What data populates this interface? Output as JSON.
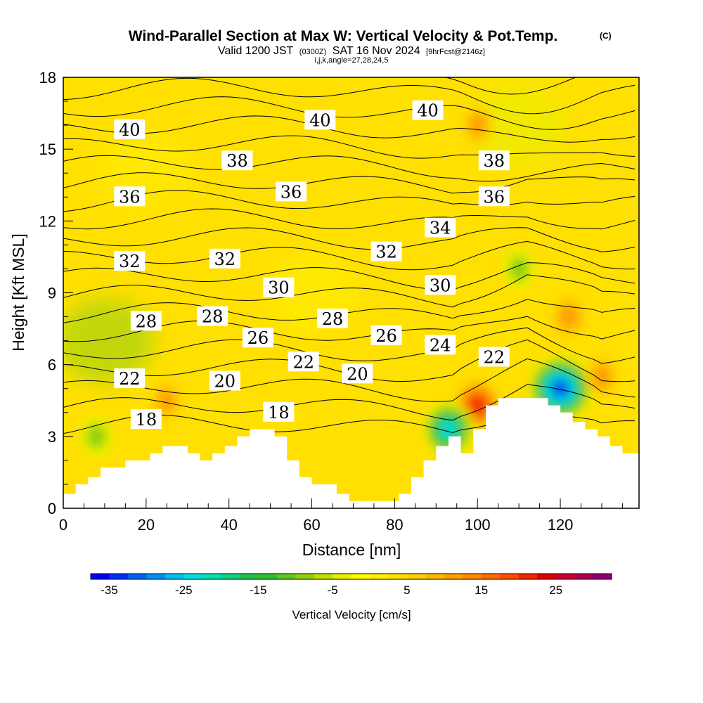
{
  "title": {
    "main": "Wind-Parallel Section at Max W: Vertical Velocity & Pot.Temp.",
    "copyright": "(C)",
    "valid_a": "Valid 1200 JST",
    "valid_b": "(0300Z)",
    "valid_c": "SAT 16 Nov 2024",
    "valid_d": "[9hrFcst@2146z]",
    "indices": "i,j,k,angle=27,28,24,5"
  },
  "chart_data": {
    "type": "heatmap",
    "xlabel": "Distance [nm]",
    "ylabel": "Height [Kft MSL]",
    "xlim": [
      0,
      139
    ],
    "ylim": [
      0,
      18
    ],
    "x_ticks": [
      0,
      20,
      40,
      60,
      80,
      100,
      120
    ],
    "y_ticks": [
      0,
      3,
      6,
      9,
      12,
      15,
      18
    ],
    "colorbar": {
      "label": "Vertical Velocity [cm/s]",
      "tick_labels": [
        "-35",
        "-25",
        "-15",
        "-5",
        "5",
        "15",
        "25"
      ],
      "min": -37.5,
      "max": 32.5,
      "step": 2.5,
      "colors": [
        "#0000f0",
        "#0030f0",
        "#0060f0",
        "#0090f0",
        "#00c0f0",
        "#00e0e0",
        "#00e0b0",
        "#10d080",
        "#20c050",
        "#30c030",
        "#60c820",
        "#90d010",
        "#c0e000",
        "#e8f000",
        "#ffff00",
        "#fff000",
        "#ffe000",
        "#ffd000",
        "#ffb800",
        "#ffa000",
        "#ff8800",
        "#ff6c00",
        "#ff4c00",
        "#f02800",
        "#e00000",
        "#c80030",
        "#b00050",
        "#900070"
      ]
    },
    "vertical_velocity_features": [
      {
        "kind": "updraft",
        "x": 100,
        "y": 4.3,
        "peak": 22
      },
      {
        "kind": "downdraft",
        "x": 93,
        "y": 3.3,
        "peak": -25
      },
      {
        "kind": "downdraft",
        "x": 120,
        "y": 5.0,
        "peak": -35
      },
      {
        "kind": "updraft",
        "x": 122,
        "y": 8.0,
        "peak": 12
      },
      {
        "kind": "updraft",
        "x": 130,
        "y": 5.5,
        "peak": 10
      },
      {
        "kind": "downdraft",
        "x": 8,
        "y": 3.0,
        "peak": -10
      },
      {
        "kind": "updraft",
        "x": 25,
        "y": 4.5,
        "peak": 8
      },
      {
        "kind": "downdraft",
        "x": 110,
        "y": 10.0,
        "peak": -10
      },
      {
        "kind": "updraft",
        "x": 100,
        "y": 16.0,
        "peak": 8
      }
    ],
    "terrain_profile": {
      "x": [
        0,
        3,
        6,
        9,
        12,
        15,
        18,
        21,
        24,
        27,
        30,
        33,
        36,
        39,
        42,
        45,
        48,
        51,
        54,
        57,
        60,
        63,
        66,
        69,
        72,
        75,
        78,
        81,
        84,
        87,
        90,
        93,
        96,
        99,
        102,
        105,
        108,
        111,
        114,
        117,
        120,
        123,
        126,
        129,
        132,
        135,
        139
      ],
      "height_kft": [
        0.6,
        1.0,
        1.3,
        1.7,
        1.7,
        2.0,
        2.0,
        2.3,
        2.6,
        2.6,
        2.3,
        2.0,
        2.3,
        2.6,
        3.0,
        3.3,
        3.3,
        3.0,
        2.0,
        1.3,
        1.0,
        1.0,
        0.6,
        0.3,
        0.3,
        0.3,
        0.3,
        0.6,
        1.3,
        2.0,
        2.6,
        3.0,
        2.3,
        3.3,
        4.3,
        4.6,
        4.6,
        4.6,
        4.6,
        4.3,
        4.0,
        3.6,
        3.3,
        3.0,
        2.6,
        2.3,
        2.3
      ]
    },
    "isentrope_levels": [
      18,
      20,
      22,
      24,
      26,
      28,
      30,
      32,
      34,
      36,
      38,
      40
    ],
    "contour_labels": [
      {
        "text": "40",
        "x": 16,
        "y": 15.8
      },
      {
        "text": "40",
        "x": 62,
        "y": 16.2
      },
      {
        "text": "40",
        "x": 88,
        "y": 16.6
      },
      {
        "text": "38",
        "x": 42,
        "y": 14.5
      },
      {
        "text": "38",
        "x": 104,
        "y": 14.5
      },
      {
        "text": "36",
        "x": 16,
        "y": 13.0
      },
      {
        "text": "36",
        "x": 55,
        "y": 13.2
      },
      {
        "text": "36",
        "x": 104,
        "y": 13.0
      },
      {
        "text": "34",
        "x": 91,
        "y": 11.7
      },
      {
        "text": "32",
        "x": 16,
        "y": 10.3
      },
      {
        "text": "32",
        "x": 39,
        "y": 10.4
      },
      {
        "text": "32",
        "x": 78,
        "y": 10.7
      },
      {
        "text": "30",
        "x": 52,
        "y": 9.2
      },
      {
        "text": "30",
        "x": 91,
        "y": 9.3
      },
      {
        "text": "28",
        "x": 20,
        "y": 7.8
      },
      {
        "text": "28",
        "x": 36,
        "y": 8.0
      },
      {
        "text": "28",
        "x": 65,
        "y": 7.9
      },
      {
        "text": "26",
        "x": 47,
        "y": 7.1
      },
      {
        "text": "26",
        "x": 78,
        "y": 7.2
      },
      {
        "text": "24",
        "x": 91,
        "y": 6.8
      },
      {
        "text": "22",
        "x": 16,
        "y": 5.4
      },
      {
        "text": "22",
        "x": 58,
        "y": 6.1
      },
      {
        "text": "22",
        "x": 104,
        "y": 6.3
      },
      {
        "text": "20",
        "x": 39,
        "y": 5.3
      },
      {
        "text": "20",
        "x": 71,
        "y": 5.6
      },
      {
        "text": "18",
        "x": 20,
        "y": 3.7
      },
      {
        "text": "18",
        "x": 52,
        "y": 4.0
      }
    ]
  }
}
